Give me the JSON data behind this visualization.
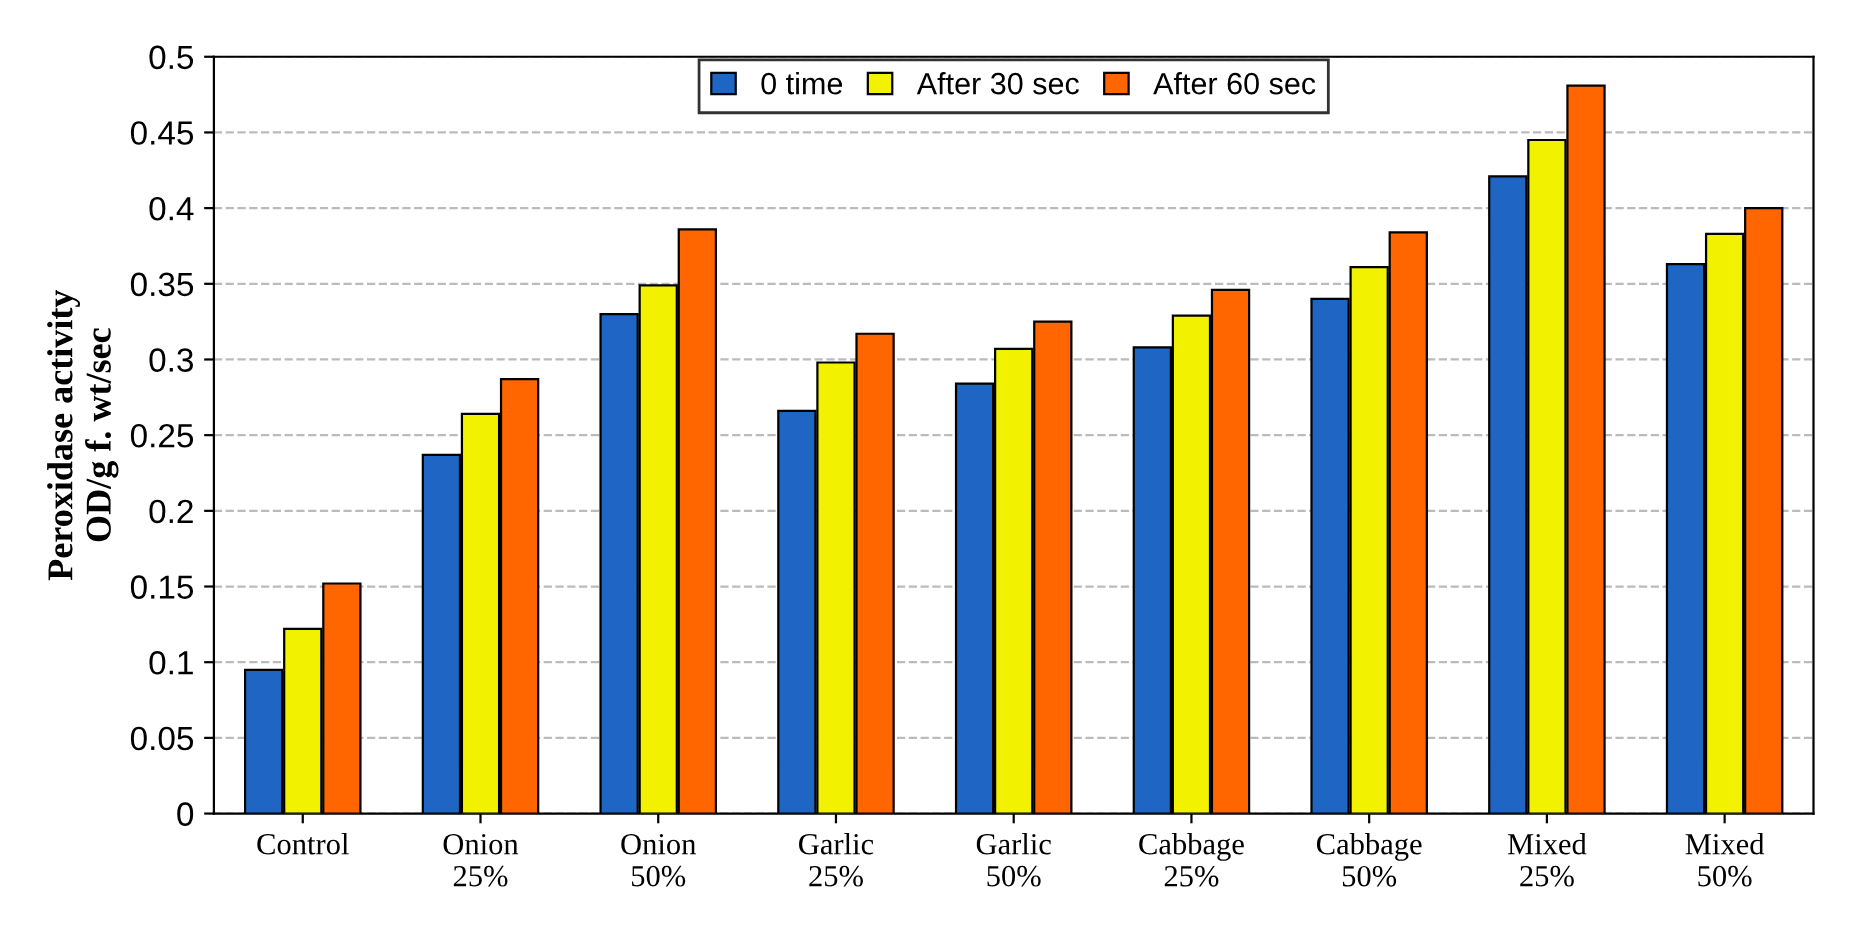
{
  "chart_data": {
    "type": "bar",
    "ylabel": "Peroxidase activity\nOD/g f. wt/sec",
    "categories": [
      "Control",
      "Onion\n25%",
      "Onion\n50%",
      "Garlic\n25%",
      "Garlic\n50%",
      "Cabbage\n25%",
      "Cabbage\n50%",
      "Mixed\n25%",
      "Mixed\n50%"
    ],
    "series": [
      {
        "name": "0 time",
        "color": "#1f66c4",
        "values": [
          0.095,
          0.237,
          0.33,
          0.266,
          0.284,
          0.308,
          0.34,
          0.421,
          0.363
        ]
      },
      {
        "name": "After 30 sec",
        "color": "#f2f200",
        "values": [
          0.122,
          0.264,
          0.349,
          0.298,
          0.307,
          0.329,
          0.361,
          0.445,
          0.383
        ]
      },
      {
        "name": "After 60 sec",
        "color": "#ff6600",
        "values": [
          0.152,
          0.287,
          0.386,
          0.317,
          0.325,
          0.346,
          0.384,
          0.481,
          0.4
        ]
      }
    ],
    "ylim": [
      0,
      0.5
    ],
    "yticks": [
      0,
      {
        "value": 0.05,
        "label": "0.05"
      },
      {
        "value": 0.1,
        "label": "0.1"
      },
      {
        "value": 0.15,
        "label": "0.15"
      },
      {
        "value": 0.2,
        "label": "0.2"
      },
      {
        "value": 0.25,
        "label": "0.25"
      },
      {
        "value": 0.3,
        "label": "0.3"
      },
      {
        "value": 0.35,
        "label": "0.35"
      },
      {
        "value": 0.4,
        "label": "0.4"
      },
      {
        "value": 0.45,
        "label": "0.45"
      },
      {
        "value": 0.5,
        "label": "0.5"
      }
    ],
    "grid": "y",
    "legend": "top"
  }
}
